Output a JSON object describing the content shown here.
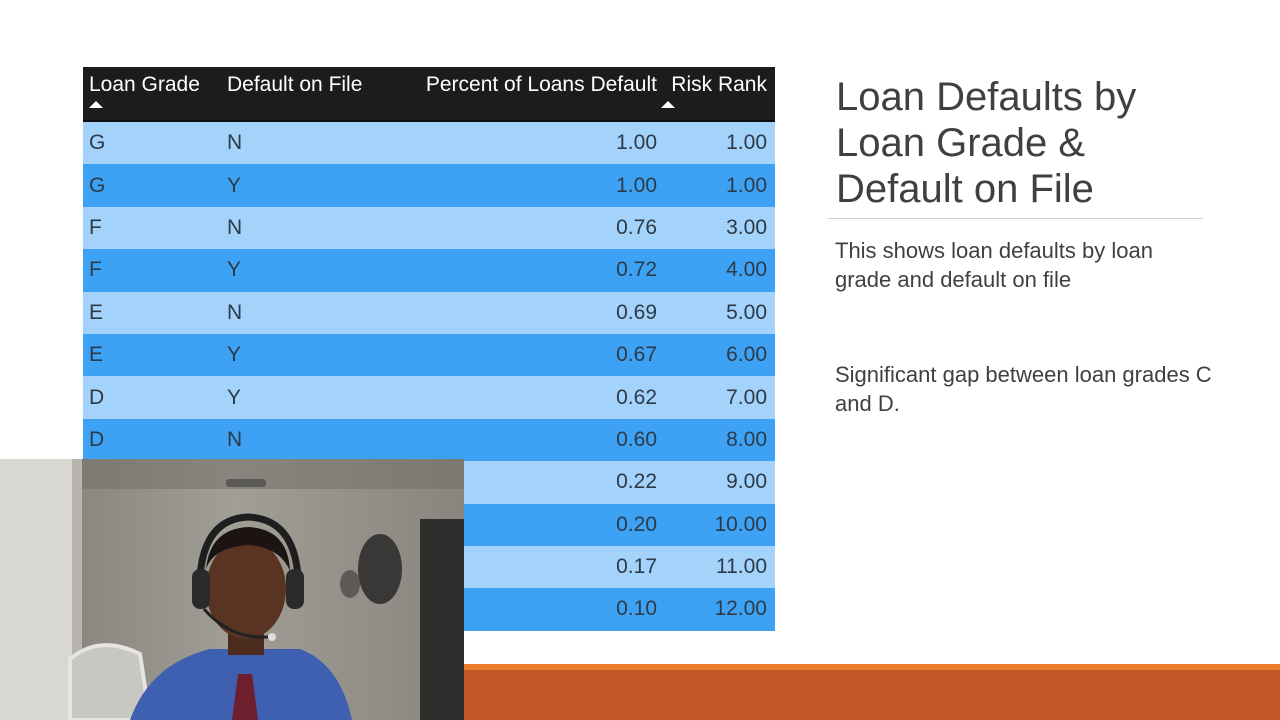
{
  "table": {
    "headers": {
      "loan_grade": "Loan Grade",
      "default_on_file": "Default on File",
      "percent_default": "Percent of Loans Default",
      "risk_rank": "Risk Rank"
    },
    "rows": [
      {
        "grade": "G",
        "file": "N",
        "pct": "1.00",
        "rank": "1.00"
      },
      {
        "grade": "G",
        "file": "Y",
        "pct": "1.00",
        "rank": "1.00"
      },
      {
        "grade": "F",
        "file": "N",
        "pct": "0.76",
        "rank": "3.00"
      },
      {
        "grade": "F",
        "file": "Y",
        "pct": "0.72",
        "rank": "4.00"
      },
      {
        "grade": "E",
        "file": "N",
        "pct": "0.69",
        "rank": "5.00"
      },
      {
        "grade": "E",
        "file": "Y",
        "pct": "0.67",
        "rank": "6.00"
      },
      {
        "grade": "D",
        "file": "Y",
        "pct": "0.62",
        "rank": "7.00"
      },
      {
        "grade": "D",
        "file": "N",
        "pct": "0.60",
        "rank": "8.00"
      },
      {
        "grade": "",
        "file": "",
        "pct": "0.22",
        "rank": "9.00"
      },
      {
        "grade": "",
        "file": "",
        "pct": "0.20",
        "rank": "10.00"
      },
      {
        "grade": "",
        "file": "",
        "pct": "0.17",
        "rank": "11.00"
      },
      {
        "grade": "",
        "file": "",
        "pct": "0.10",
        "rank": "12.00"
      }
    ]
  },
  "slide": {
    "title": "Loan Defaults by Loan Grade & Default on File",
    "paragraph1": "This shows loan defaults by loan grade and default on file",
    "paragraph2": "Significant gap between loan grades C and D."
  },
  "colors": {
    "header_bg": "#1c1c1c",
    "row_light": "#a3d2fb",
    "row_dark": "#3ea2f4",
    "accent_orange": "#e97b2a",
    "accent_rust": "#c2572a"
  },
  "icons": {
    "sort_loan_grade": "sort-ascending-icon",
    "sort_risk_rank": "sort-ascending-icon"
  }
}
